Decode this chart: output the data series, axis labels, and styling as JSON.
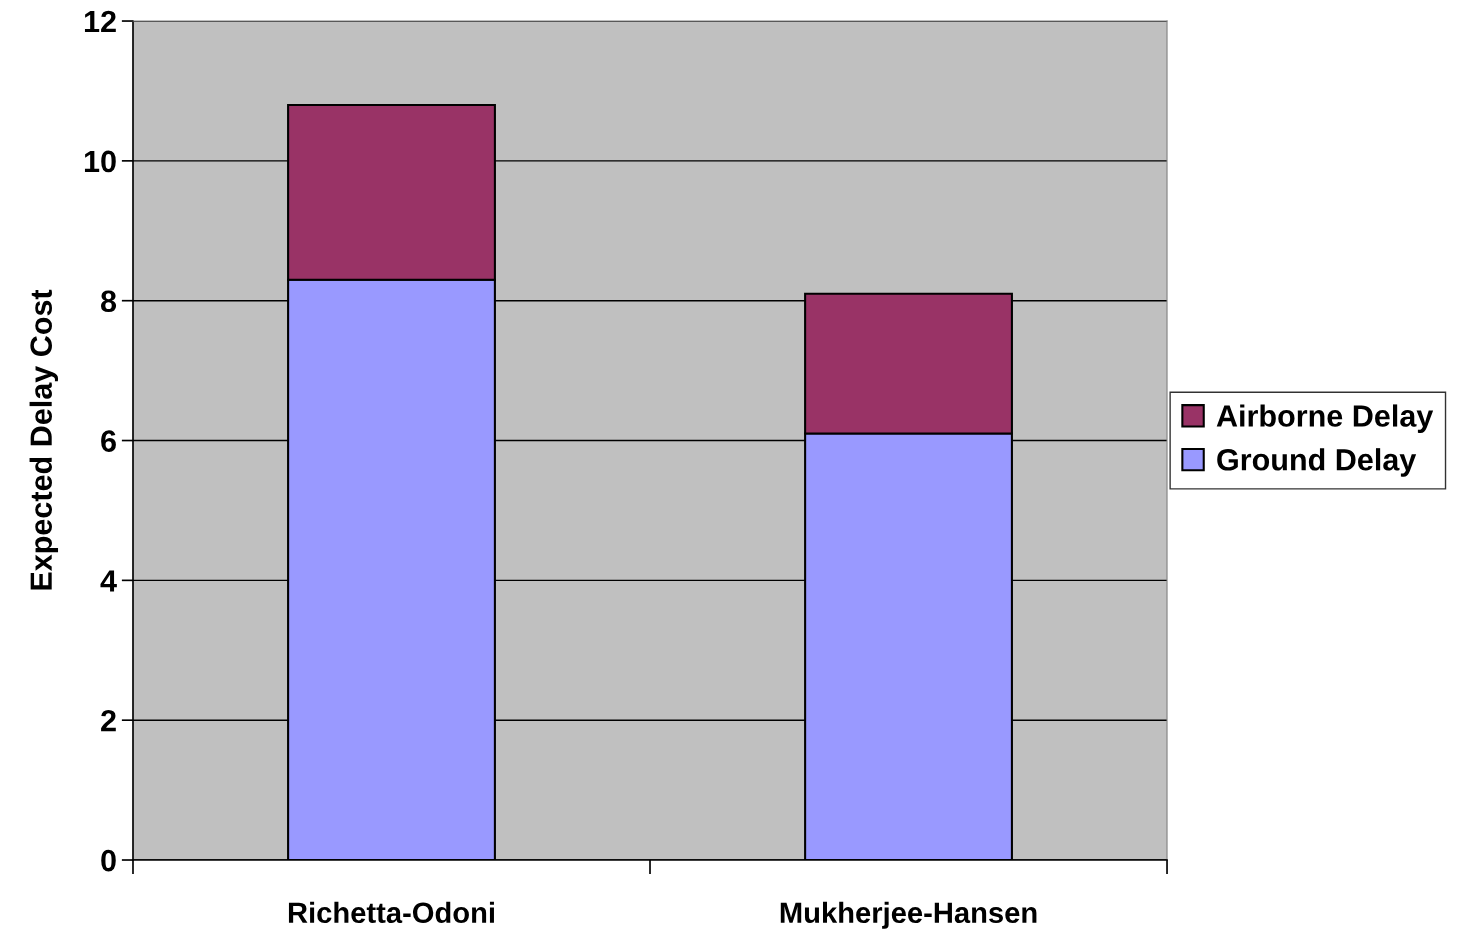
{
  "chart_data": {
    "type": "bar",
    "stacked": true,
    "ylabel": "Expected Delay Cost",
    "categories": [
      "Richetta-Odoni",
      "Mukherjee-Hansen"
    ],
    "series": [
      {
        "name": "Ground Delay",
        "color": "#9999ff",
        "values": [
          8.3,
          6.1
        ]
      },
      {
        "name": "Airborne Delay",
        "color": "#993366",
        "values": [
          2.5,
          2.0
        ]
      }
    ],
    "ylim": [
      0,
      12
    ],
    "yticks": [
      0,
      2,
      4,
      6,
      8,
      10,
      12
    ],
    "grid": "y",
    "legend": "right"
  }
}
